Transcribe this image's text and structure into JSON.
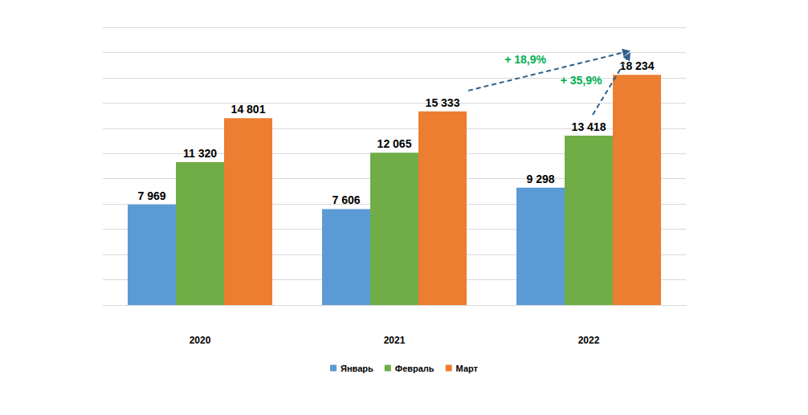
{
  "chart_data": {
    "type": "bar",
    "categories": [
      "2020",
      "2021",
      "2022"
    ],
    "series": [
      {
        "name": "Январь",
        "color": "#5b9bd5",
        "values": [
          7969,
          7606,
          9298
        ],
        "value_labels": [
          "7 969",
          "7 606",
          "9 298"
        ]
      },
      {
        "name": "Февраль",
        "color": "#70ad47",
        "values": [
          11320,
          12065,
          13418
        ],
        "value_labels": [
          "11 320",
          "12 065",
          "13 418"
        ]
      },
      {
        "name": "Март",
        "color": "#ed7d31",
        "values": [
          14801,
          15333,
          18234
        ],
        "value_labels": [
          "14 801",
          "15 333",
          "18 234"
        ]
      }
    ],
    "ylim": [
      0,
      22000
    ],
    "yticks": [
      0,
      2000,
      4000,
      6000,
      8000,
      10000,
      12000,
      14000,
      16000,
      18000,
      20000,
      22000
    ],
    "grid": true,
    "tick_labels": "x",
    "data_labels": true,
    "legend": "bottom",
    "annotations": [
      {
        "text": "+ 18,9%",
        "color": "#00b050",
        "from": {
          "category": "2021",
          "series": "Март"
        },
        "to": {
          "category": "2022",
          "series": "Март"
        }
      },
      {
        "text": "+ 35,9%",
        "color": "#00b050",
        "from": {
          "category": "2022",
          "series": "Февраль"
        },
        "to": {
          "category": "2022",
          "series": "Март"
        }
      }
    ]
  }
}
